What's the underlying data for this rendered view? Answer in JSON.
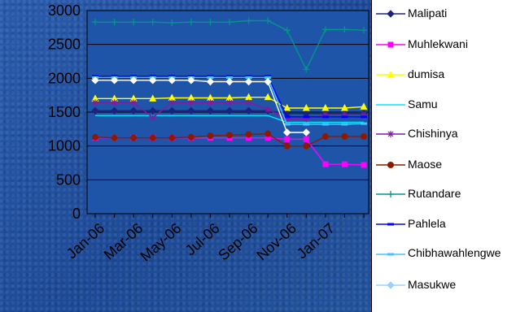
{
  "chart_data": {
    "type": "line",
    "categories": [
      "Jan-06",
      "Feb-06",
      "Mar-06",
      "Apr-06",
      "May-06",
      "Jun-06",
      "Jul-06",
      "Aug-06",
      "Sep-06",
      "Oct-06",
      "Nov-06",
      "Dec-06",
      "Jan-07",
      "Feb-07",
      "Mar-07"
    ],
    "x_tick_labels": [
      "Jan-06",
      "Mar-06",
      "May-06",
      "Jul-06",
      "Sep-06",
      "Nov-06",
      "Jan-07"
    ],
    "y_ticks": [
      0,
      500,
      1000,
      1500,
      2000,
      2500,
      3000
    ],
    "ylim": [
      0,
      3000
    ],
    "grid": true,
    "legend_position": "right",
    "series": [
      {
        "name": "Malipati",
        "color": "#1a237e",
        "marker": "diamond",
        "values": [
          1520,
          1520,
          1520,
          1520,
          1520,
          1520,
          1520,
          1520,
          1520,
          1520,
          1480,
          1480,
          1480,
          1480,
          1480
        ]
      },
      {
        "name": "Muhlekwani",
        "color": "#ff00ff",
        "marker": "square",
        "values": [
          1120,
          1120,
          1120,
          1120,
          1120,
          1120,
          1120,
          1120,
          1120,
          1120,
          1100,
          1100,
          730,
          730,
          720
        ]
      },
      {
        "name": "dumisa",
        "color": "#ffff00",
        "marker": "triangle",
        "values": [
          1700,
          1700,
          1700,
          1700,
          1710,
          1710,
          1710,
          1710,
          1720,
          1720,
          1560,
          1560,
          1560,
          1560,
          1580
        ]
      },
      {
        "name": "Samu",
        "color": "#00e5ff",
        "marker": "none",
        "values": [
          1450,
          1450,
          1450,
          1450,
          1450,
          1450,
          1450,
          1450,
          1450,
          1450,
          1350,
          1350,
          1350,
          1350,
          1350
        ]
      },
      {
        "name": "Chishinya",
        "color": "#7b1fa2",
        "marker": "star",
        "values": [
          1640,
          1640,
          1640,
          1420,
          1640,
          1640,
          1640,
          1640,
          1640,
          1540,
          1400,
          1400,
          1460,
          1460,
          1460
        ]
      },
      {
        "name": "Maose",
        "color": "#8b1a00",
        "marker": "circle",
        "values": [
          1130,
          1120,
          1120,
          1120,
          1120,
          1130,
          1150,
          1160,
          1170,
          1180,
          1000,
          1000,
          1140,
          1140,
          1140
        ]
      },
      {
        "name": "Rutandare",
        "color": "#009688",
        "marker": "plus",
        "values": [
          2830,
          2830,
          2830,
          2830,
          2820,
          2830,
          2830,
          2830,
          2850,
          2850,
          2710,
          2130,
          2720,
          2720,
          2710
        ]
      },
      {
        "name": "Pahlela",
        "color": "#0000ff",
        "marker": "dash",
        "values": [
          2030,
          2030,
          2030,
          2030,
          2030,
          2030,
          2030,
          2030,
          2030,
          2030,
          1430,
          1430,
          1430,
          1430,
          1430
        ]
      },
      {
        "name": "Chibhawahlengwe",
        "color": "#40c4ff",
        "marker": "dash",
        "values": [
          2010,
          2010,
          2010,
          2010,
          2010,
          2010,
          2010,
          2010,
          2010,
          2010,
          1320,
          1320,
          1320,
          1320,
          1330
        ]
      },
      {
        "name": "Masukwe",
        "color": "#ffffff",
        "marker": "diamond",
        "values": [
          1970,
          1970,
          1970,
          1970,
          1970,
          1970,
          1950,
          1950,
          1950,
          1950,
          1200,
          1200,
          null,
          null,
          null
        ]
      }
    ]
  }
}
